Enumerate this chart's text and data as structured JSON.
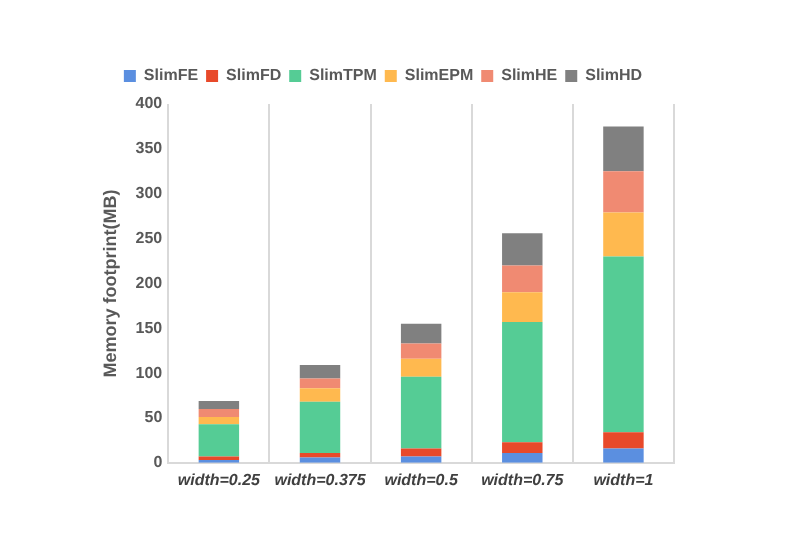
{
  "chart_data": {
    "type": "bar",
    "stacked": true,
    "ylabel": "Memory footprint(MB)",
    "categories": [
      "width=0.25",
      "width=0.375",
      "width=0.5",
      "width=0.75",
      "width=1"
    ],
    "series": [
      {
        "name": "SlimFE",
        "color": "#5b8fe0",
        "values": [
          3,
          6,
          7,
          11,
          16
        ]
      },
      {
        "name": "SlimFD",
        "color": "#e8492a",
        "values": [
          4,
          5,
          9,
          12,
          18
        ]
      },
      {
        "name": "SlimTPM",
        "color": "#55cc95",
        "values": [
          36,
          57,
          80,
          134,
          196
        ]
      },
      {
        "name": "SlimEPM",
        "color": "#ffb94f",
        "values": [
          8,
          15,
          20,
          33,
          49
        ]
      },
      {
        "name": "SlimHE",
        "color": "#f08a72",
        "values": [
          9,
          11,
          17,
          30,
          46
        ]
      },
      {
        "name": "SlimHD",
        "color": "#808080",
        "values": [
          9,
          15,
          22,
          36,
          50
        ]
      }
    ],
    "ylim": [
      0,
      400
    ],
    "yticks": [
      0,
      50,
      100,
      150,
      200,
      250,
      300,
      350,
      400
    ],
    "grid": "x",
    "legend": "top"
  }
}
